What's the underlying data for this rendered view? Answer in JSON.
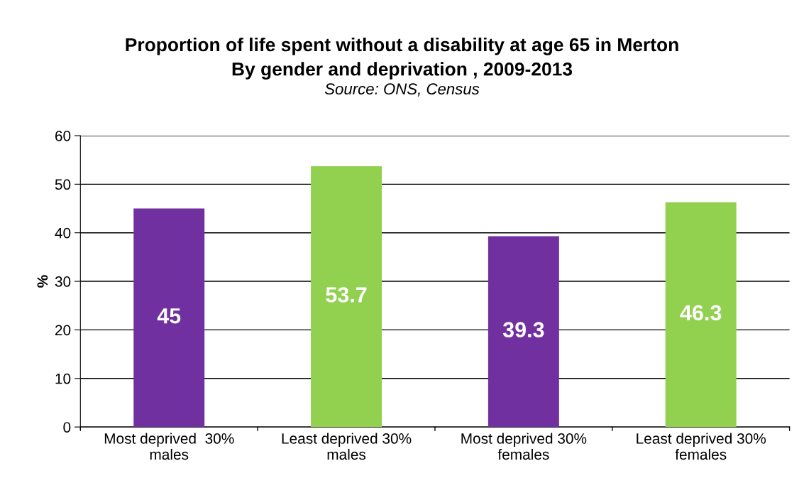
{
  "chart_data": {
    "type": "bar",
    "title": "Proportion of life spent without a disability at age 65 in Merton\nBy gender and deprivation , 2009-2013",
    "subtitle": "Source: ONS, Census",
    "ylabel": "%",
    "categories": [
      "Most deprived  30%\nmales",
      "Least deprived 30%\nmales",
      "Most deprived 30%\nfemales",
      "Least deprived 30%\nfemales"
    ],
    "values": [
      45,
      53.7,
      39.3,
      46.3
    ],
    "colors": [
      "#7030a0",
      "#92d050",
      "#7030a0",
      "#92d050"
    ],
    "ylim": [
      0,
      60
    ],
    "yticks": [
      0,
      10,
      20,
      30,
      40,
      50,
      60
    ],
    "grid": "y",
    "data_labels": true,
    "legend": false
  }
}
